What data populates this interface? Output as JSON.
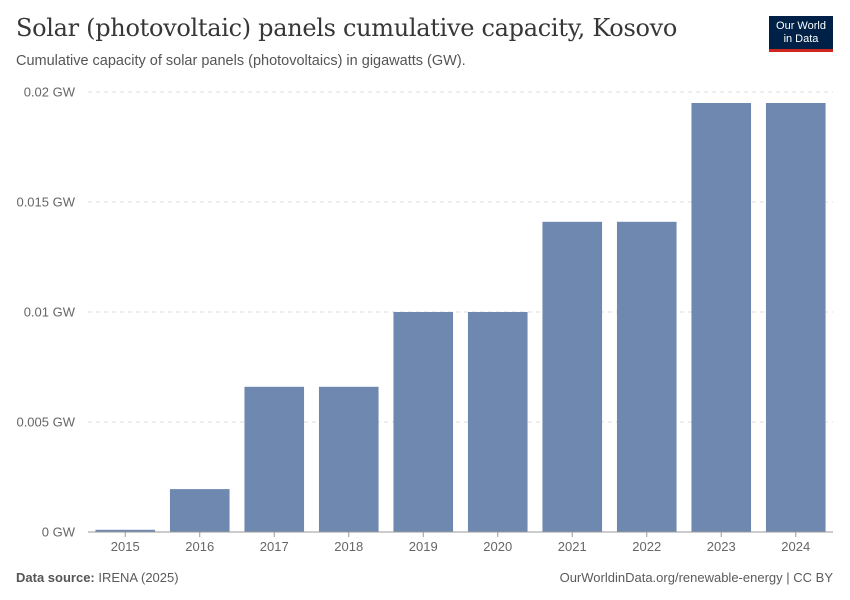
{
  "header": {
    "title": "Solar (photovoltaic) panels cumulative capacity, Kosovo",
    "subtitle": "Cumulative capacity of solar panels (photovoltaics) in gigawatts (GW)."
  },
  "logo": {
    "line1": "Our World",
    "line2": "in Data"
  },
  "footer": {
    "source_label": "Data source:",
    "source_value": "IRENA (2025)",
    "link_text": "OurWorldinData.org/renewable-energy",
    "license": "CC BY"
  },
  "colors": {
    "bar": "#6f88b0",
    "grid": "#dddddd",
    "axis": "#999999"
  },
  "chart_data": {
    "type": "bar",
    "title": "Solar (photovoltaic) panels cumulative capacity, Kosovo",
    "xlabel": "",
    "ylabel": "",
    "unit": "GW",
    "categories": [
      "2015",
      "2016",
      "2017",
      "2018",
      "2019",
      "2020",
      "2021",
      "2022",
      "2023",
      "2024"
    ],
    "values": [
      0.0001,
      0.00195,
      0.0066,
      0.0066,
      0.01,
      0.01,
      0.0141,
      0.0141,
      0.0195,
      0.0195
    ],
    "ylim": [
      0,
      0.02
    ],
    "yticks": [
      0,
      0.005,
      0.01,
      0.015,
      0.02
    ],
    "ytick_labels": [
      "0 GW",
      "0.005 GW",
      "0.01 GW",
      "0.015 GW",
      "0.02 GW"
    ],
    "grid": true
  }
}
